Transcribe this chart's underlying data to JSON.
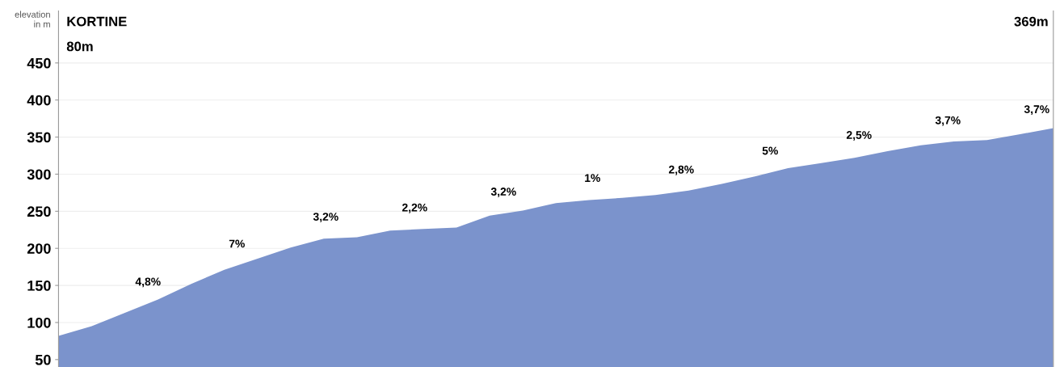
{
  "chart_data": {
    "type": "area",
    "ylabel": "elevation\nin m",
    "categories": [
      null,
      null,
      null,
      null,
      null,
      null,
      null,
      null,
      null,
      null,
      null,
      null,
      null,
      null,
      null,
      null,
      null,
      null,
      null,
      null,
      null,
      null,
      null,
      null,
      null,
      null,
      null,
      null,
      null,
      null,
      null
    ],
    "series": [
      {
        "color": "#7b93cc",
        "values": [
          82,
          95,
          113,
          131,
          152,
          171,
          186,
          201,
          213,
          215,
          224,
          226,
          228,
          244,
          251,
          261,
          265,
          268,
          272,
          278,
          287,
          297,
          308,
          315,
          322,
          331,
          339,
          344,
          346,
          354,
          362
        ]
      }
    ],
    "ylim": [
      40,
      520
    ],
    "yticks": [
      50,
      100,
      150,
      200,
      250,
      300,
      350,
      400,
      450
    ],
    "grid": "y",
    "title": "KORTINE",
    "subtitle": "80m",
    "annotations": [
      "369m",
      "4,8%",
      "7%",
      "3,2%",
      "2,2%",
      "3,2%",
      "1%",
      "2,8%",
      "5%",
      "2,5%",
      "3,7%",
      "3,7%"
    ]
  }
}
